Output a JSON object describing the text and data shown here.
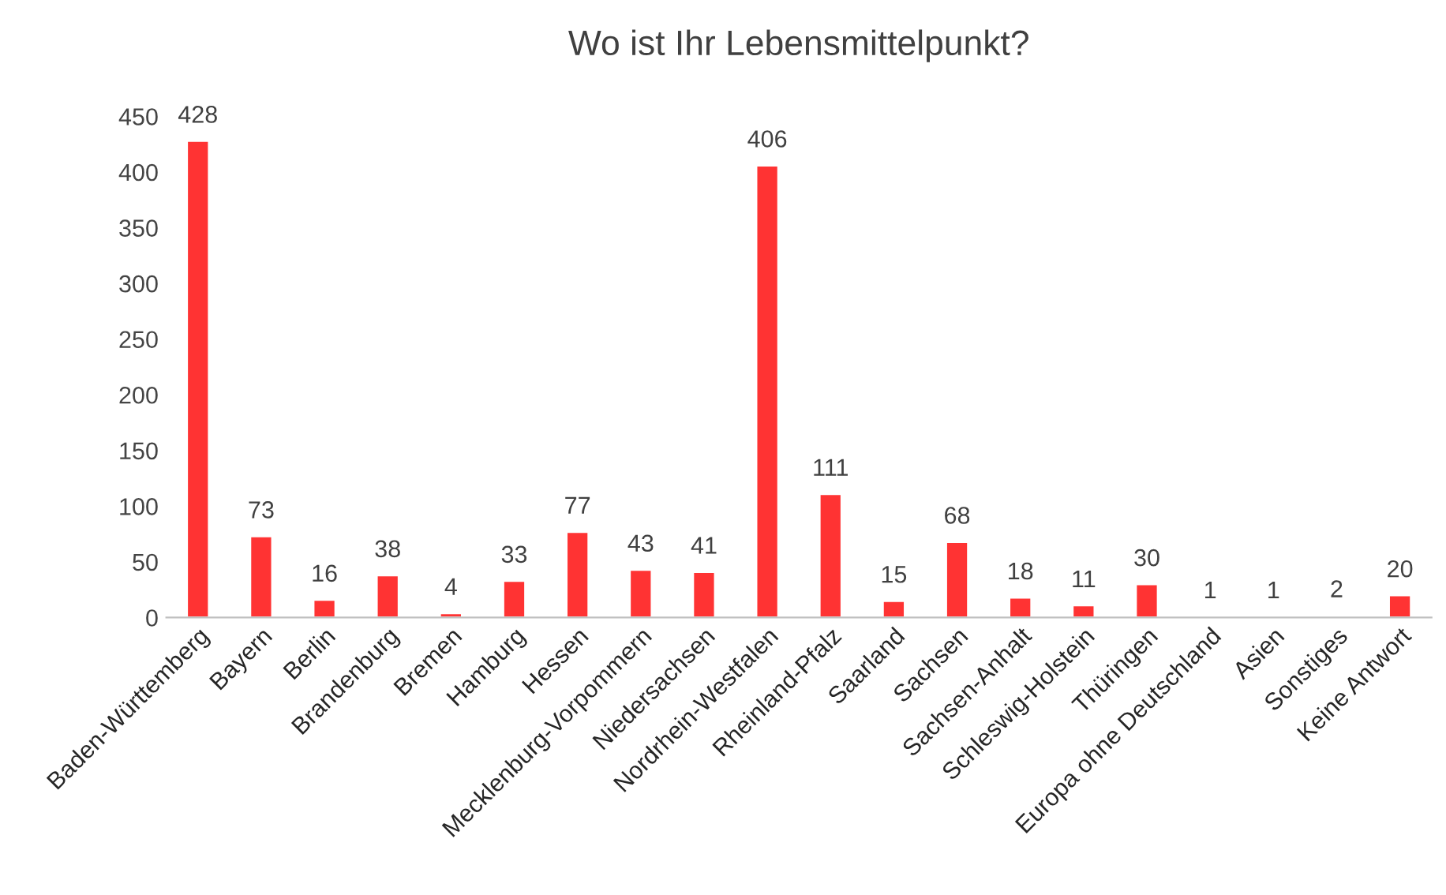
{
  "chart_data": {
    "type": "bar",
    "title": "Wo ist Ihr Lebensmittelpunkt?",
    "categories": [
      "Baden-Württemberg",
      "Bayern",
      "Berlin",
      "Brandenburg",
      "Bremen",
      "Hamburg",
      "Hessen",
      "Mecklenburg-Vorpommern",
      "Niedersachsen",
      "Nordrhein-Westfalen",
      "Rheinland-Pfalz",
      "Saarland",
      "Sachsen",
      "Sachsen-Anhalt",
      "Schleswig-Holstein",
      "Thüringen",
      "Europa ohne Deutschland",
      "Asien",
      "Sonstiges",
      "Keine Antwort"
    ],
    "values": [
      428,
      73,
      16,
      38,
      4,
      33,
      77,
      43,
      41,
      406,
      111,
      15,
      68,
      18,
      11,
      30,
      1,
      1,
      2,
      20
    ],
    "color": "#ff3333",
    "ylim": [
      0,
      450
    ],
    "yticks": [
      0,
      50,
      100,
      150,
      200,
      250,
      300,
      350,
      400,
      450
    ],
    "data_labels": true,
    "grid": false,
    "legend": false
  }
}
